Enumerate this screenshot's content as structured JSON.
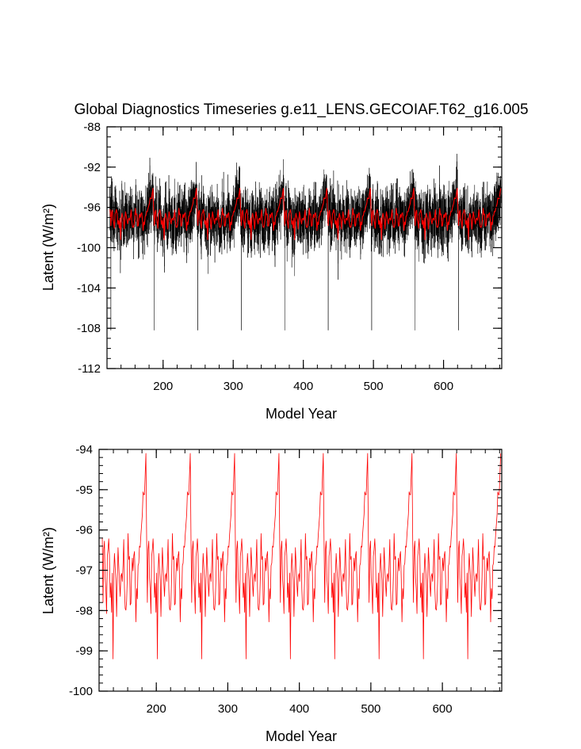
{
  "title": "Global Diagnostics Timeseries g.e11_LENS.GECOIAF.T62_g16.005",
  "colors": {
    "monthly": "#000000",
    "annual": "#ff0000",
    "axis": "#000000"
  },
  "chart_data": [
    {
      "type": "line",
      "xlabel": "Model Year",
      "ylabel": "Latent (W/m²)",
      "xlim": [
        120,
        683
      ],
      "ylim": [
        -112,
        -88
      ],
      "xticks": [
        200,
        300,
        400,
        500,
        600
      ],
      "yticks": [
        -112,
        -108,
        -104,
        -100,
        -96,
        -92,
        -88
      ],
      "cycle": {
        "start_year": 124,
        "length_years": 62,
        "repeats": 9,
        "annual_mean_min": -99.2,
        "annual_mean_max": -94.1,
        "monthly_min": -108.2,
        "monthly_max": -89.5
      },
      "series": [
        {
          "name": "",
          "color": "#000000",
          "resolution": "monthly"
        },
        {
          "name": "",
          "color": "#ff0000",
          "resolution": "annual"
        }
      ]
    },
    {
      "type": "line",
      "xlabel": "Model Year",
      "ylabel": "Latent (W/m²)",
      "xlim": [
        120,
        683
      ],
      "ylim": [
        -100,
        -94
      ],
      "xticks": [
        200,
        300,
        400,
        500,
        600
      ],
      "yticks": [
        -100,
        -99,
        -98,
        -97,
        -96,
        -95,
        -94
      ],
      "series": [
        {
          "name": "",
          "color": "#ff0000",
          "resolution": "annual"
        }
      ]
    }
  ]
}
